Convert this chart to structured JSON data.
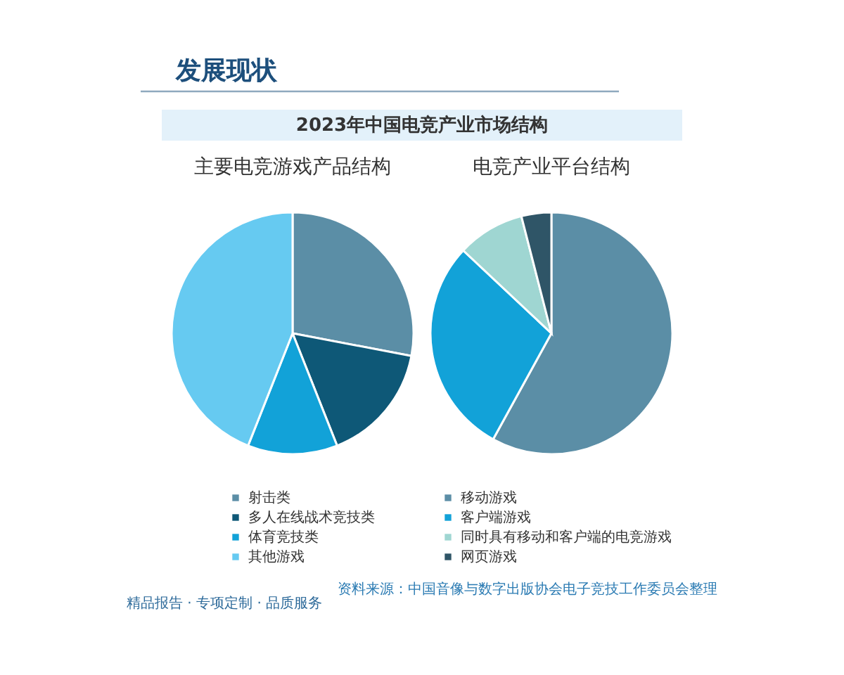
{
  "chart_data": [
    {
      "type": "other",
      "title": "2023年中国电竞产业市场结构",
      "annotations": [
        "发展现状",
        "资料来源：中国音像与数字出版协会电子竞技工作委员会整理",
        "精品报告 · 专项定制 · 品质服务"
      ]
    },
    {
      "type": "pie",
      "title": "主要电竞游戏产品结构",
      "categories": [
        "射击类",
        "多人在线战术竞技类",
        "体育竞技类",
        "其他游戏"
      ],
      "values": [
        28,
        16,
        12,
        44
      ],
      "colors": [
        "#5b8ea6",
        "#0e5877",
        "#12a2d8",
        "#66caf1"
      ],
      "legend": "bottom"
    },
    {
      "type": "pie",
      "title": "电竞产业平台结构",
      "categories": [
        "移动游戏",
        "客户端游戏",
        "同时具有移动和客户端的电竞游戏",
        "网页游戏"
      ],
      "values": [
        58,
        29,
        9,
        4
      ],
      "colors": [
        "#5b8ea6",
        "#12a2d8",
        "#9fd6d2",
        "#2f5567"
      ],
      "legend": "bottom"
    }
  ]
}
